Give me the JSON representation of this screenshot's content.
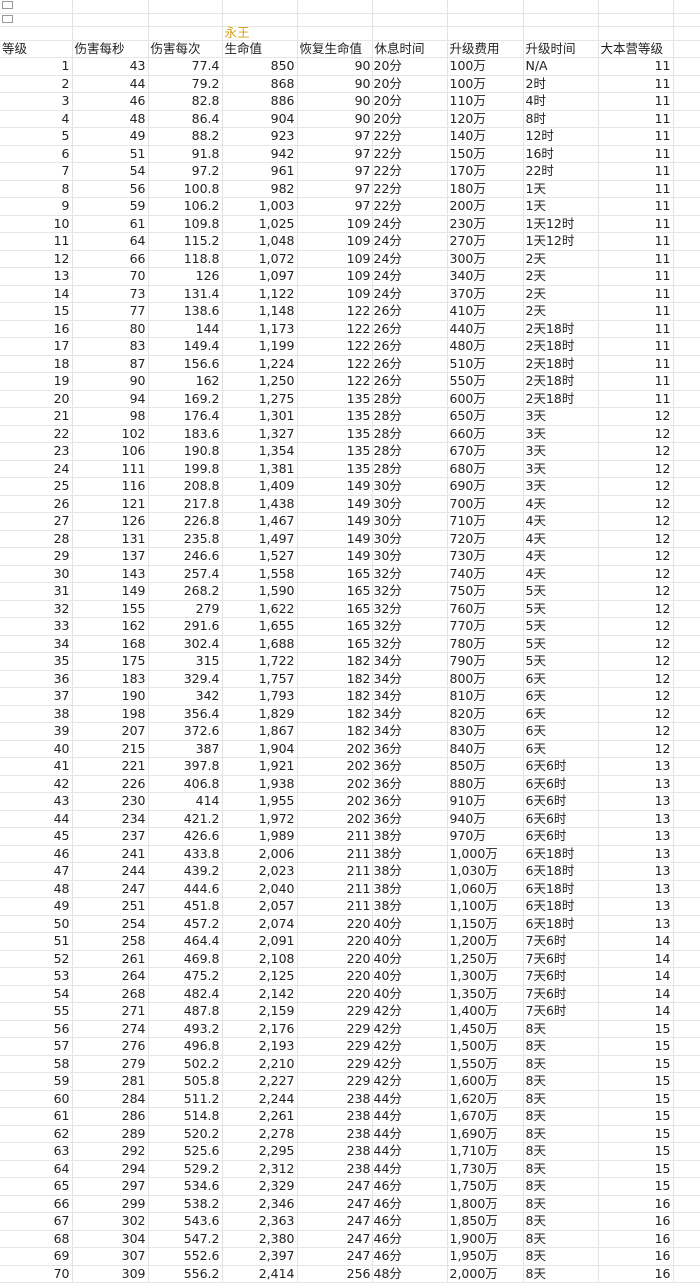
{
  "sheet": {
    "title": "永王",
    "accent_color": "#d4a017",
    "icons": [
      "broken-image-icon",
      "broken-image-icon"
    ],
    "headers": [
      "等级",
      "伤害每秒",
      "伤害每次",
      "生命值",
      "恢复生命值",
      "休息时间",
      "升级费用",
      "升级时间",
      "大本营等级"
    ],
    "rows": [
      [
        "1",
        "43",
        "77.4",
        "850",
        "90",
        "20分",
        "100万",
        "N/A",
        "11"
      ],
      [
        "2",
        "44",
        "79.2",
        "868",
        "90",
        "20分",
        "100万",
        "2时",
        "11"
      ],
      [
        "3",
        "46",
        "82.8",
        "886",
        "90",
        "20分",
        "110万",
        "4时",
        "11"
      ],
      [
        "4",
        "48",
        "86.4",
        "904",
        "90",
        "20分",
        "120万",
        "8时",
        "11"
      ],
      [
        "5",
        "49",
        "88.2",
        "923",
        "97",
        "22分",
        "140万",
        "12时",
        "11"
      ],
      [
        "6",
        "51",
        "91.8",
        "942",
        "97",
        "22分",
        "150万",
        "16时",
        "11"
      ],
      [
        "7",
        "54",
        "97.2",
        "961",
        "97",
        "22分",
        "170万",
        "22时",
        "11"
      ],
      [
        "8",
        "56",
        "100.8",
        "982",
        "97",
        "22分",
        "180万",
        "1天",
        "11"
      ],
      [
        "9",
        "59",
        "106.2",
        "1,003",
        "97",
        "22分",
        "200万",
        "1天",
        "11"
      ],
      [
        "10",
        "61",
        "109.8",
        "1,025",
        "109",
        "24分",
        "230万",
        "1天12时",
        "11"
      ],
      [
        "11",
        "64",
        "115.2",
        "1,048",
        "109",
        "24分",
        "270万",
        "1天12时",
        "11"
      ],
      [
        "12",
        "66",
        "118.8",
        "1,072",
        "109",
        "24分",
        "300万",
        "2天",
        "11"
      ],
      [
        "13",
        "70",
        "126",
        "1,097",
        "109",
        "24分",
        "340万",
        "2天",
        "11"
      ],
      [
        "14",
        "73",
        "131.4",
        "1,122",
        "109",
        "24分",
        "370万",
        "2天",
        "11"
      ],
      [
        "15",
        "77",
        "138.6",
        "1,148",
        "122",
        "26分",
        "410万",
        "2天",
        "11"
      ],
      [
        "16",
        "80",
        "144",
        "1,173",
        "122",
        "26分",
        "440万",
        "2天18时",
        "11"
      ],
      [
        "17",
        "83",
        "149.4",
        "1,199",
        "122",
        "26分",
        "480万",
        "2天18时",
        "11"
      ],
      [
        "18",
        "87",
        "156.6",
        "1,224",
        "122",
        "26分",
        "510万",
        "2天18时",
        "11"
      ],
      [
        "19",
        "90",
        "162",
        "1,250",
        "122",
        "26分",
        "550万",
        "2天18时",
        "11"
      ],
      [
        "20",
        "94",
        "169.2",
        "1,275",
        "135",
        "28分",
        "600万",
        "2天18时",
        "11"
      ],
      [
        "21",
        "98",
        "176.4",
        "1,301",
        "135",
        "28分",
        "650万",
        "3天",
        "12"
      ],
      [
        "22",
        "102",
        "183.6",
        "1,327",
        "135",
        "28分",
        "660万",
        "3天",
        "12"
      ],
      [
        "23",
        "106",
        "190.8",
        "1,354",
        "135",
        "28分",
        "670万",
        "3天",
        "12"
      ],
      [
        "24",
        "111",
        "199.8",
        "1,381",
        "135",
        "28分",
        "680万",
        "3天",
        "12"
      ],
      [
        "25",
        "116",
        "208.8",
        "1,409",
        "149",
        "30分",
        "690万",
        "3天",
        "12"
      ],
      [
        "26",
        "121",
        "217.8",
        "1,438",
        "149",
        "30分",
        "700万",
        "4天",
        "12"
      ],
      [
        "27",
        "126",
        "226.8",
        "1,467",
        "149",
        "30分",
        "710万",
        "4天",
        "12"
      ],
      [
        "28",
        "131",
        "235.8",
        "1,497",
        "149",
        "30分",
        "720万",
        "4天",
        "12"
      ],
      [
        "29",
        "137",
        "246.6",
        "1,527",
        "149",
        "30分",
        "730万",
        "4天",
        "12"
      ],
      [
        "30",
        "143",
        "257.4",
        "1,558",
        "165",
        "32分",
        "740万",
        "4天",
        "12"
      ],
      [
        "31",
        "149",
        "268.2",
        "1,590",
        "165",
        "32分",
        "750万",
        "5天",
        "12"
      ],
      [
        "32",
        "155",
        "279",
        "1,622",
        "165",
        "32分",
        "760万",
        "5天",
        "12"
      ],
      [
        "33",
        "162",
        "291.6",
        "1,655",
        "165",
        "32分",
        "770万",
        "5天",
        "12"
      ],
      [
        "34",
        "168",
        "302.4",
        "1,688",
        "165",
        "32分",
        "780万",
        "5天",
        "12"
      ],
      [
        "35",
        "175",
        "315",
        "1,722",
        "182",
        "34分",
        "790万",
        "5天",
        "12"
      ],
      [
        "36",
        "183",
        "329.4",
        "1,757",
        "182",
        "34分",
        "800万",
        "6天",
        "12"
      ],
      [
        "37",
        "190",
        "342",
        "1,793",
        "182",
        "34分",
        "810万",
        "6天",
        "12"
      ],
      [
        "38",
        "198",
        "356.4",
        "1,829",
        "182",
        "34分",
        "820万",
        "6天",
        "12"
      ],
      [
        "39",
        "207",
        "372.6",
        "1,867",
        "182",
        "34分",
        "830万",
        "6天",
        "12"
      ],
      [
        "40",
        "215",
        "387",
        "1,904",
        "202",
        "36分",
        "840万",
        "6天",
        "12"
      ],
      [
        "41",
        "221",
        "397.8",
        "1,921",
        "202",
        "36分",
        "850万",
        "6天6时",
        "13"
      ],
      [
        "42",
        "226",
        "406.8",
        "1,938",
        "202",
        "36分",
        "880万",
        "6天6时",
        "13"
      ],
      [
        "43",
        "230",
        "414",
        "1,955",
        "202",
        "36分",
        "910万",
        "6天6时",
        "13"
      ],
      [
        "44",
        "234",
        "421.2",
        "1,972",
        "202",
        "36分",
        "940万",
        "6天6时",
        "13"
      ],
      [
        "45",
        "237",
        "426.6",
        "1,989",
        "211",
        "38分",
        "970万",
        "6天6时",
        "13"
      ],
      [
        "46",
        "241",
        "433.8",
        "2,006",
        "211",
        "38分",
        "1,000万",
        "6天18时",
        "13"
      ],
      [
        "47",
        "244",
        "439.2",
        "2,023",
        "211",
        "38分",
        "1,030万",
        "6天18时",
        "13"
      ],
      [
        "48",
        "247",
        "444.6",
        "2,040",
        "211",
        "38分",
        "1,060万",
        "6天18时",
        "13"
      ],
      [
        "49",
        "251",
        "451.8",
        "2,057",
        "211",
        "38分",
        "1,100万",
        "6天18时",
        "13"
      ],
      [
        "50",
        "254",
        "457.2",
        "2,074",
        "220",
        "40分",
        "1,150万",
        "6天18时",
        "13"
      ],
      [
        "51",
        "258",
        "464.4",
        "2,091",
        "220",
        "40分",
        "1,200万",
        "7天6时",
        "14"
      ],
      [
        "52",
        "261",
        "469.8",
        "2,108",
        "220",
        "40分",
        "1,250万",
        "7天6时",
        "14"
      ],
      [
        "53",
        "264",
        "475.2",
        "2,125",
        "220",
        "40分",
        "1,300万",
        "7天6时",
        "14"
      ],
      [
        "54",
        "268",
        "482.4",
        "2,142",
        "220",
        "40分",
        "1,350万",
        "7天6时",
        "14"
      ],
      [
        "55",
        "271",
        "487.8",
        "2,159",
        "229",
        "42分",
        "1,400万",
        "7天6时",
        "14"
      ],
      [
        "56",
        "274",
        "493.2",
        "2,176",
        "229",
        "42分",
        "1,450万",
        "8天",
        "15"
      ],
      [
        "57",
        "276",
        "496.8",
        "2,193",
        "229",
        "42分",
        "1,500万",
        "8天",
        "15"
      ],
      [
        "58",
        "279",
        "502.2",
        "2,210",
        "229",
        "42分",
        "1,550万",
        "8天",
        "15"
      ],
      [
        "59",
        "281",
        "505.8",
        "2,227",
        "229",
        "42分",
        "1,600万",
        "8天",
        "15"
      ],
      [
        "60",
        "284",
        "511.2",
        "2,244",
        "238",
        "44分",
        "1,620万",
        "8天",
        "15"
      ],
      [
        "61",
        "286",
        "514.8",
        "2,261",
        "238",
        "44分",
        "1,670万",
        "8天",
        "15"
      ],
      [
        "62",
        "289",
        "520.2",
        "2,278",
        "238",
        "44分",
        "1,690万",
        "8天",
        "15"
      ],
      [
        "63",
        "292",
        "525.6",
        "2,295",
        "238",
        "44分",
        "1,710万",
        "8天",
        "15"
      ],
      [
        "64",
        "294",
        "529.2",
        "2,312",
        "238",
        "44分",
        "1,730万",
        "8天",
        "15"
      ],
      [
        "65",
        "297",
        "534.6",
        "2,329",
        "247",
        "46分",
        "1,750万",
        "8天",
        "15"
      ],
      [
        "66",
        "299",
        "538.2",
        "2,346",
        "247",
        "46分",
        "1,800万",
        "8天",
        "16"
      ],
      [
        "67",
        "302",
        "543.6",
        "2,363",
        "247",
        "46分",
        "1,850万",
        "8天",
        "16"
      ],
      [
        "68",
        "304",
        "547.2",
        "2,380",
        "247",
        "46分",
        "1,900万",
        "8天",
        "16"
      ],
      [
        "69",
        "307",
        "552.6",
        "2,397",
        "247",
        "46分",
        "1,950万",
        "8天",
        "16"
      ],
      [
        "70",
        "309",
        "556.2",
        "2,414",
        "256",
        "48分",
        "2,000万",
        "8天",
        "16"
      ]
    ]
  }
}
